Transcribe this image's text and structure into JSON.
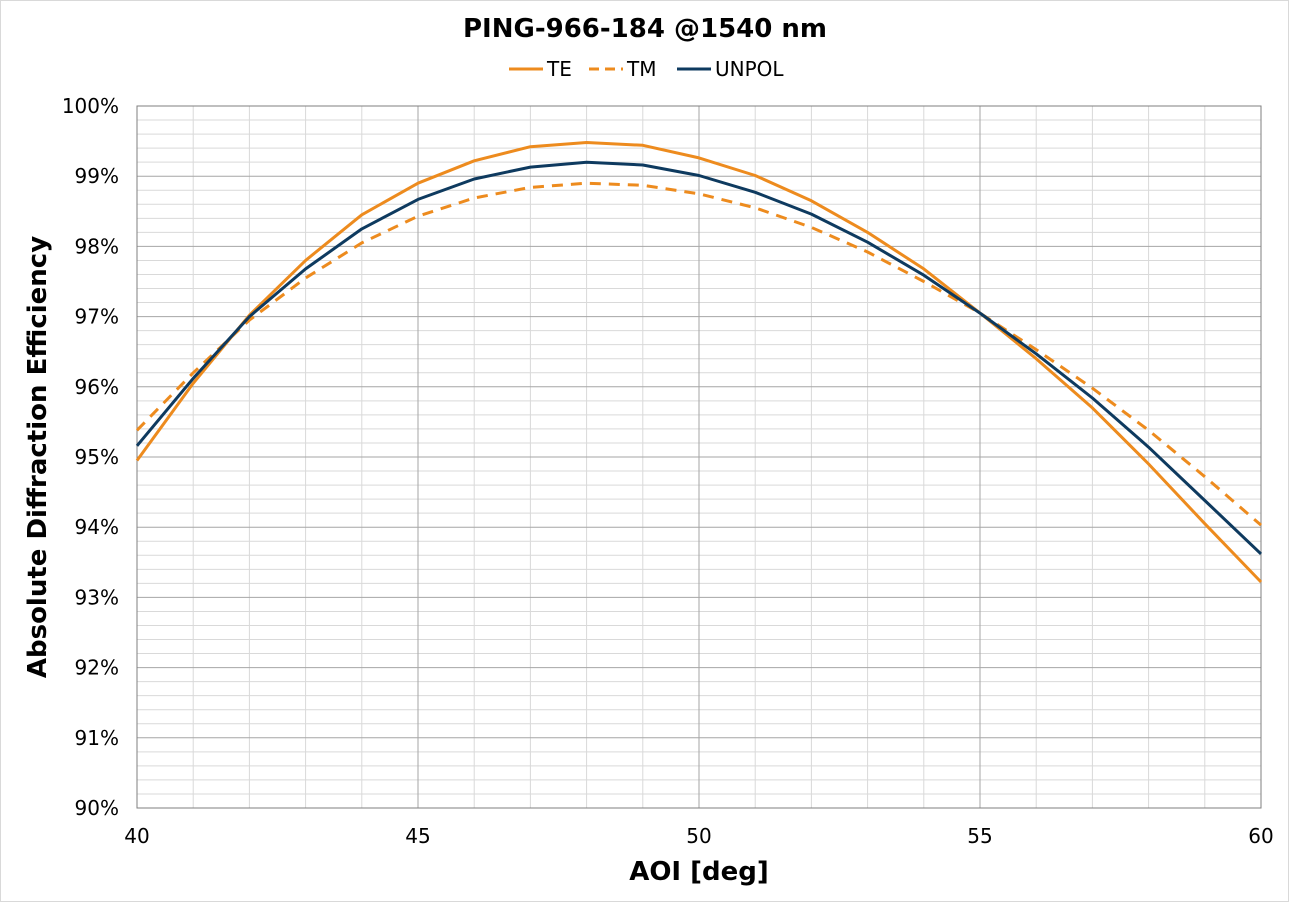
{
  "chart_data": {
    "type": "line",
    "title": "PING-966-184 @1540 nm",
    "xlabel": "AOI [deg]",
    "ylabel": "Absolute Diffraction Efficiency",
    "xlim": [
      40,
      60
    ],
    "ylim": [
      90,
      100
    ],
    "x_ticks": [
      40,
      45,
      50,
      55,
      60
    ],
    "x_tick_labels": [
      "40",
      "45",
      "50",
      "55",
      "60"
    ],
    "y_ticks": [
      90,
      91,
      92,
      93,
      94,
      95,
      96,
      97,
      98,
      99,
      100
    ],
    "y_tick_labels": [
      "90%",
      "91%",
      "92%",
      "93%",
      "94%",
      "95%",
      "96%",
      "97%",
      "98%",
      "99%",
      "100%"
    ],
    "x_minor_step": 1,
    "y_minor_step": 0.2,
    "grid": true,
    "legend_position": "top",
    "x": [
      40,
      41,
      42,
      43,
      44,
      45,
      46,
      47,
      48,
      49,
      50,
      51,
      52,
      53,
      54,
      55,
      56,
      57,
      58,
      59,
      60
    ],
    "series": [
      {
        "name": "TE",
        "color": "#ED8B1E",
        "dash": "solid",
        "values": [
          94.95,
          96.05,
          97.02,
          97.8,
          98.45,
          98.9,
          99.22,
          99.42,
          99.48,
          99.44,
          99.26,
          99.01,
          98.65,
          98.2,
          97.68,
          97.05,
          96.4,
          95.7,
          94.9,
          94.05,
          93.22
        ]
      },
      {
        "name": "TM",
        "color": "#ED8B1E",
        "dash": "dashed",
        "values": [
          95.38,
          96.2,
          96.95,
          97.55,
          98.05,
          98.43,
          98.69,
          98.84,
          98.9,
          98.87,
          98.75,
          98.55,
          98.27,
          97.92,
          97.5,
          97.05,
          96.53,
          95.98,
          95.38,
          94.72,
          94.03
        ]
      },
      {
        "name": "UNPOL",
        "color": "#0E3A5F",
        "dash": "solid",
        "values": [
          95.16,
          96.12,
          97.0,
          97.68,
          98.25,
          98.67,
          98.96,
          99.13,
          99.2,
          99.16,
          99.01,
          98.77,
          98.46,
          98.06,
          97.59,
          97.05,
          96.47,
          95.84,
          95.14,
          94.38,
          93.62
        ]
      }
    ]
  }
}
